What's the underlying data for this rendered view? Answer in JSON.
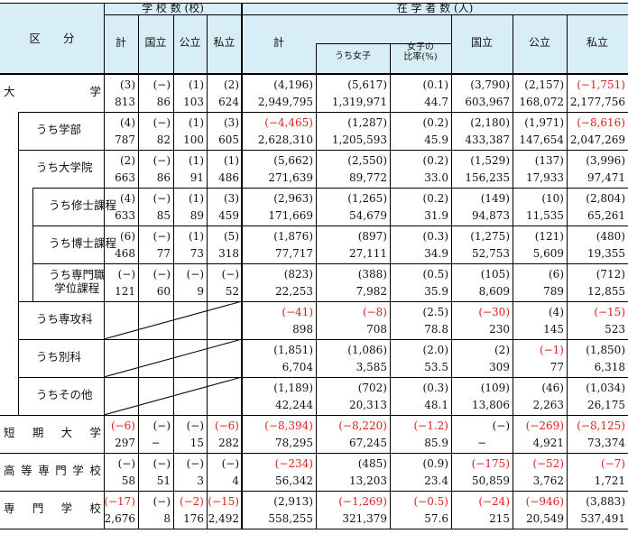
{
  "header": {
    "category_label": "区　　分",
    "schools_group": "学 校 数 (校)",
    "students_group": "在 学 者 数 (人)",
    "schools_cols": [
      "計",
      "国立",
      "公立",
      "私立"
    ],
    "students_total": "計",
    "students_female": "うち女子",
    "students_female_ratio": "女子の\n比率(%)",
    "students_cols": [
      "国立",
      "公立",
      "私立"
    ]
  },
  "colors": {
    "negative": "#e0201b",
    "header_bg": "#d8eef6"
  },
  "rows": [
    {
      "label": "大　　　　学",
      "change": [
        "(3)",
        "(−)",
        "(1)",
        "(2)",
        "(4,196)",
        "(5,617)",
        "(0.1)",
        "(3,790)",
        "(2,157)",
        "(−1,751)"
      ],
      "value": [
        "813",
        "86",
        "103",
        "624",
        "2,949,795",
        "1,319,971",
        "44.7",
        "603,967",
        "168,072",
        "2,177,756"
      ]
    },
    {
      "label": "うち学部",
      "change": [
        "(4)",
        "(−)",
        "(1)",
        "(3)",
        "(−4,465)",
        "(1,287)",
        "(0.2)",
        "(2,180)",
        "(1,971)",
        "(−8,616)"
      ],
      "value": [
        "787",
        "82",
        "100",
        "605",
        "2,628,310",
        "1,205,593",
        "45.9",
        "433,387",
        "147,654",
        "2,047,269"
      ]
    },
    {
      "label": "うち大学院",
      "change": [
        "(2)",
        "(−)",
        "(1)",
        "(1)",
        "(5,662)",
        "(2,550)",
        "(0.2)",
        "(1,529)",
        "(137)",
        "(3,996)"
      ],
      "value": [
        "663",
        "86",
        "91",
        "486",
        "271,639",
        "89,772",
        "33.0",
        "156,235",
        "17,933",
        "97,471"
      ]
    },
    {
      "label": "うち修士課程",
      "change": [
        "(4)",
        "(−)",
        "(1)",
        "(3)",
        "(2,963)",
        "(1,265)",
        "(0.2)",
        "(149)",
        "(10)",
        "(2,804)"
      ],
      "value": [
        "633",
        "85",
        "89",
        "459",
        "171,669",
        "54,679",
        "31.9",
        "94,873",
        "11,535",
        "65,261"
      ]
    },
    {
      "label": "うち博士課程",
      "change": [
        "(6)",
        "(−)",
        "(1)",
        "(5)",
        "(1,876)",
        "(897)",
        "(0.3)",
        "(1,275)",
        "(121)",
        "(480)"
      ],
      "value": [
        "468",
        "77",
        "73",
        "318",
        "77,717",
        "27,111",
        "34.9",
        "52,753",
        "5,609",
        "19,355"
      ]
    },
    {
      "label": "うち専門職\n学位課程",
      "change": [
        "(−)",
        "(−)",
        "(−)",
        "(−)",
        "(823)",
        "(388)",
        "(0.5)",
        "(105)",
        "(6)",
        "(712)"
      ],
      "value": [
        "121",
        "60",
        "9",
        "52",
        "22,253",
        "7,982",
        "35.9",
        "8,609",
        "789",
        "12,855"
      ]
    },
    {
      "label": "うち専攻科",
      "change": [
        "",
        "",
        "",
        "",
        "(−41)",
        "(−8)",
        "(2.5)",
        "(−30)",
        "(4)",
        "(−15)"
      ],
      "value": [
        "",
        "",
        "",
        "",
        "898",
        "708",
        "78.8",
        "230",
        "145",
        "523"
      ]
    },
    {
      "label": "うち別科",
      "change": [
        "",
        "",
        "",
        "",
        "(1,851)",
        "(1,086)",
        "(2.0)",
        "(2)",
        "(−1)",
        "(1,850)"
      ],
      "value": [
        "",
        "",
        "",
        "",
        "6,704",
        "3,585",
        "53.5",
        "309",
        "77",
        "6,318"
      ]
    },
    {
      "label": "うちその他",
      "change": [
        "",
        "",
        "",
        "",
        "(1,189)",
        "(702)",
        "(0.3)",
        "(109)",
        "(46)",
        "(1,034)"
      ],
      "value": [
        "",
        "",
        "",
        "",
        "42,244",
        "20,313",
        "48.1",
        "13,806",
        "2,263",
        "26,175"
      ]
    },
    {
      "label": "短　期　大　学",
      "change": [
        "(−6)",
        "(−)",
        "(−)",
        "(−6)",
        "(−8,394)",
        "(−8,220)",
        "(−1.2)",
        "(−)",
        "(−269)",
        "(−8,125)"
      ],
      "value": [
        "297",
        "−",
        "15",
        "282",
        "78,295",
        "67,245",
        "85.9",
        "−",
        "4,921",
        "73,374"
      ]
    },
    {
      "label": "高等専門学校",
      "change": [
        "(−)",
        "(−)",
        "(−)",
        "(−)",
        "(−234)",
        "(485)",
        "(0.9)",
        "(−175)",
        "(−52)",
        "(−7)"
      ],
      "value": [
        "58",
        "51",
        "3",
        "4",
        "56,342",
        "13,203",
        "23.4",
        "50,859",
        "3,762",
        "1,721"
      ]
    },
    {
      "label": "専　門　学　校",
      "change": [
        "(−17)",
        "(−)",
        "(−2)",
        "(−15)",
        "(2,913)",
        "(−1,269)",
        "(−0.5)",
        "(−24)",
        "(−946)",
        "(3,883)"
      ],
      "value": [
        "2,676",
        "8",
        "176",
        "2,492",
        "558,255",
        "321,379",
        "57.6",
        "215",
        "20,549",
        "537,491"
      ]
    }
  ]
}
